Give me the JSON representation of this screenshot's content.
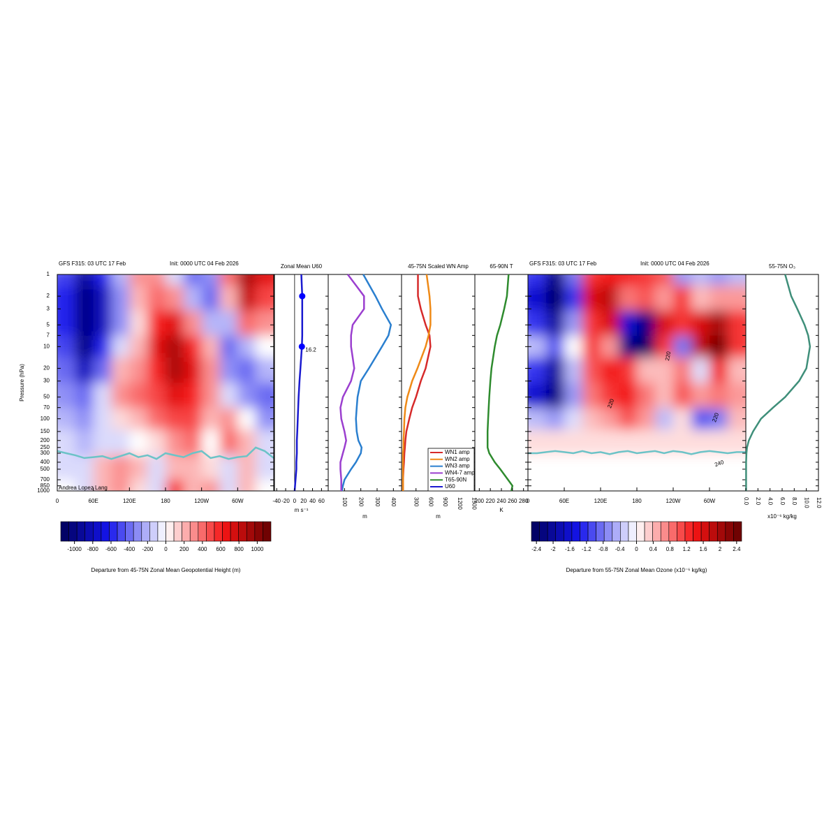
{
  "chart_data": [
    {
      "type": "heatmap",
      "title": "GFS F315: 03 UTC 17 Feb",
      "subtitle": "Init: 0000 UTC 04 Feb 2026",
      "y_label": "Pressure (hPa)",
      "credit": "Andrea Lopez Lang",
      "x": [
        15,
        45,
        75,
        105,
        135,
        165,
        195,
        225,
        255,
        285,
        315,
        345
      ],
      "levels": [
        1,
        2,
        5,
        10,
        20,
        50,
        100,
        200,
        500,
        1000
      ],
      "values": [
        [
          -500,
          -900,
          -600,
          -200,
          300,
          300,
          -100,
          -400,
          -300,
          400,
          900,
          700
        ],
        [
          -600,
          -1000,
          -800,
          -300,
          200,
          400,
          300,
          -200,
          -400,
          200,
          800,
          500
        ],
        [
          -600,
          -1000,
          -800,
          -300,
          100,
          600,
          700,
          300,
          -200,
          -200,
          400,
          300
        ],
        [
          -500,
          -1000,
          -600,
          -100,
          200,
          700,
          900,
          600,
          200,
          -400,
          -200,
          0
        ],
        [
          -400,
          -800,
          -400,
          200,
          300,
          600,
          900,
          700,
          300,
          -300,
          -400,
          -200
        ],
        [
          -300,
          -400,
          -100,
          300,
          400,
          500,
          700,
          600,
          300,
          -100,
          -300,
          -400
        ],
        [
          -200,
          -300,
          -100,
          100,
          200,
          400,
          500,
          500,
          200,
          300,
          0,
          -300
        ],
        [
          -100,
          -200,
          -100,
          -100,
          0,
          100,
          300,
          400,
          0,
          400,
          200,
          -100
        ],
        [
          -100,
          -100,
          200,
          300,
          200,
          -100,
          200,
          200,
          100,
          -100,
          200,
          -100
        ],
        [
          0,
          -100,
          200,
          300,
          100,
          -100,
          600,
          200,
          300,
          -100,
          200,
          0
        ]
      ],
      "xlim": [
        0,
        360
      ],
      "ylim": [
        1,
        1000
      ],
      "log_y": true,
      "xticks": [
        0,
        {
          "value": 60,
          "label": "60E"
        },
        {
          "value": 120,
          "label": "120E"
        },
        180,
        {
          "value": 240,
          "label": "120W"
        },
        {
          "value": 300,
          "label": "60W"
        }
      ],
      "yticks": [
        1,
        2,
        3,
        5,
        7,
        10,
        20,
        30,
        50,
        70,
        100,
        150,
        200,
        250,
        300,
        400,
        500,
        700,
        850,
        1000
      ],
      "overlay": {
        "color": "#6cc3c7",
        "x": [
          0,
          15,
          30,
          45,
          60,
          75,
          90,
          105,
          120,
          135,
          150,
          165,
          180,
          195,
          210,
          225,
          240,
          255,
          270,
          285,
          300,
          315,
          330,
          345,
          360
        ],
        "values": [
          280,
          300,
          320,
          350,
          340,
          330,
          360,
          330,
          300,
          340,
          320,
          360,
          300,
          320,
          340,
          300,
          280,
          350,
          330,
          360,
          340,
          330,
          250,
          280,
          350
        ]
      },
      "colorbar": {
        "clim": [
          -1150,
          1150
        ],
        "ticks": [
          -1000,
          -800,
          -600,
          -400,
          -200,
          0,
          200,
          400,
          600,
          800,
          1000
        ],
        "label": "Departure from 45-75N Zonal Mean Geopotential Height (m)"
      }
    },
    {
      "type": "profile",
      "title": "Zonal Mean U60",
      "x_label": "m s⁻¹",
      "xlim": [
        -45,
        75
      ],
      "xticks": [
        -40,
        -20,
        0,
        20,
        40,
        60
      ],
      "zero_line": true,
      "y": [
        1,
        2,
        3,
        5,
        7,
        10,
        20,
        30,
        50,
        70,
        100,
        150,
        200,
        250,
        300,
        400,
        500,
        700,
        850,
        1000
      ],
      "series": [
        {
          "name": "U60",
          "color": "#1a1ad0",
          "values": [
            15,
            17,
            17,
            17,
            17,
            16.2,
            13,
            11,
            9,
            8,
            7,
            6,
            5,
            5,
            5,
            4,
            4,
            2,
            1,
            0
          ]
        }
      ],
      "points": {
        "y": [
          2,
          10
        ],
        "values": [
          17,
          16.2
        ],
        "value_labels": [
          null,
          "16.2"
        ],
        "color": "#0000ff"
      }
    },
    {
      "type": "profile",
      "xlim": [
        0,
        450
      ],
      "xticks": [
        100,
        200,
        300,
        400
      ],
      "rotate_ticks": true,
      "x_label": "m",
      "y": [
        1,
        2,
        3,
        5,
        7,
        10,
        20,
        30,
        50,
        70,
        100,
        150,
        200,
        250,
        300,
        400,
        500,
        700,
        850,
        1000
      ],
      "series": [
        {
          "name": "WN3 amp",
          "color": "#2a7fcf",
          "values": [
            215,
            290,
            330,
            385,
            370,
            330,
            250,
            200,
            180,
            175,
            170,
            175,
            185,
            205,
            200,
            170,
            140,
            100,
            90,
            85
          ]
        },
        {
          "name": "WN4-7 amp",
          "color": "#9b3fcf",
          "values": [
            120,
            220,
            220,
            150,
            140,
            140,
            160,
            140,
            90,
            75,
            80,
            100,
            110,
            100,
            90,
            75,
            75,
            80,
            80,
            80
          ]
        }
      ]
    },
    {
      "type": "profile",
      "title": "45-75N Scaled WN Amp",
      "xlim": [
        0,
        1520
      ],
      "xticks": [
        300,
        600,
        900,
        1200,
        1500
      ],
      "rotate_ticks": true,
      "x_label": "m",
      "y": [
        1,
        2,
        3,
        5,
        7,
        10,
        20,
        30,
        50,
        70,
        100,
        150,
        200,
        250,
        300,
        400,
        500,
        700,
        850,
        1000
      ],
      "series": [
        {
          "name": "WN1 amp",
          "color": "#d62a2a",
          "values": [
            340,
            340,
            400,
            500,
            580,
            600,
            500,
            400,
            300,
            220,
            160,
            100,
            80,
            70,
            60,
            50,
            40,
            30,
            30,
            30
          ]
        },
        {
          "name": "WN2 amp",
          "color": "#ef8a17",
          "values": [
            520,
            580,
            600,
            600,
            560,
            500,
            330,
            220,
            120,
            80,
            60,
            50,
            40,
            40,
            30,
            30,
            30,
            30,
            30,
            30
          ]
        }
      ],
      "legend": "lower right"
    },
    {
      "type": "profile",
      "title": "65-90N T",
      "xlim": [
        192,
        288
      ],
      "xticks": [
        200,
        220,
        240,
        260,
        280
      ],
      "x_label": "K",
      "y": [
        1,
        2,
        3,
        5,
        7,
        10,
        20,
        30,
        50,
        70,
        100,
        150,
        200,
        250,
        300,
        400,
        500,
        700,
        850,
        1000
      ],
      "series": [
        {
          "name": "T65-90N",
          "color": "#2e8b2e",
          "values": [
            253,
            250,
            245,
            238,
            232,
            228,
            222,
            220,
            218,
            217,
            216,
            215,
            215,
            215,
            218,
            228,
            238,
            252,
            260,
            258
          ]
        }
      ]
    },
    {
      "type": "heatmap",
      "title": "GFS F315: 03 UTC 17 Feb",
      "subtitle": "Init: 0000 UTC 04 Feb 2026",
      "x": [
        15,
        45,
        75,
        105,
        135,
        165,
        195,
        225,
        255,
        285,
        315,
        345
      ],
      "levels": [
        1,
        2,
        5,
        10,
        20,
        50,
        100,
        200,
        500,
        1000
      ],
      "values": [
        [
          -1.2,
          -2.2,
          -0.8,
          1.2,
          1.4,
          1.4,
          1.2,
          1.0,
          -0.6,
          -0.4,
          -0.6,
          -0.4
        ],
        [
          -1.6,
          -2.4,
          -1.2,
          1.6,
          1.8,
          0.8,
          1.0,
          0.6,
          1.2,
          0.4,
          0.6,
          0.6
        ],
        [
          -1.2,
          -2.0,
          -0.6,
          1.2,
          1.6,
          -1.6,
          -2.2,
          1.6,
          1.2,
          1.6,
          2.0,
          1.2
        ],
        [
          -0.4,
          -1.0,
          0,
          1.2,
          0.6,
          -2.2,
          -2.4,
          1.2,
          -0.8,
          1.8,
          2.4,
          1.2
        ],
        [
          -1.2,
          -2.0,
          -0.4,
          1.0,
          1.4,
          1.2,
          0.4,
          0.4,
          0.8,
          -0.2,
          1.4,
          0.4
        ],
        [
          -1.6,
          -2.2,
          -0.6,
          0.8,
          1.2,
          1.4,
          0.8,
          0.4,
          1.0,
          0.6,
          0.8,
          0.6
        ],
        [
          -0.4,
          -0.6,
          -0.2,
          0.4,
          0.6,
          1.0,
          0.6,
          -0.4,
          0.2,
          -1.0,
          -0.8,
          0.4
        ],
        [
          0.2,
          0.2,
          0.2,
          0.2,
          0.2,
          0.2,
          0.2,
          0.2,
          0.2,
          0.2,
          0.2,
          0.2
        ],
        [
          0,
          0,
          0,
          0,
          0,
          0,
          0,
          0,
          0,
          0,
          0,
          0
        ],
        [
          0,
          0,
          0,
          0,
          0,
          0,
          0,
          0,
          0,
          0,
          0,
          0
        ]
      ],
      "xlim": [
        0,
        360
      ],
      "ylim": [
        1,
        1000
      ],
      "log_y": true,
      "xticks": [
        0,
        {
          "value": 60,
          "label": "60E"
        },
        {
          "value": 120,
          "label": "120E"
        },
        180,
        {
          "value": 240,
          "label": "120W"
        },
        {
          "value": 300,
          "label": "60W"
        }
      ],
      "contour_labels": [
        "220",
        "220",
        "220",
        "240"
      ],
      "overlay": {
        "color": "#6cc3c7",
        "x": [
          0,
          15,
          30,
          45,
          60,
          75,
          90,
          105,
          120,
          135,
          150,
          165,
          180,
          195,
          210,
          225,
          240,
          255,
          270,
          285,
          300,
          315,
          330,
          345,
          360
        ],
        "values": [
          300,
          300,
          290,
          280,
          290,
          300,
          280,
          300,
          290,
          310,
          290,
          280,
          300,
          290,
          280,
          300,
          280,
          290,
          310,
          290,
          280,
          290,
          300,
          290,
          290
        ]
      },
      "colorbar": {
        "clim": [
          -2.52,
          2.52
        ],
        "ticks": [
          -2.4,
          -2,
          -1.6,
          -1.2,
          -0.8,
          -0.4,
          0,
          0.4,
          0.8,
          1.2,
          1.6,
          2,
          2.4
        ],
        "label": "Departure from 55-75N Zonal Mean Ozone (x10⁻⁶ kg/kg)"
      }
    },
    {
      "type": "profile",
      "title": "55-75N O₃",
      "xlim": [
        0,
        12
      ],
      "rotate_ticks": true,
      "x_label": "x10⁻⁶ kg/kg",
      "xticks": [
        {
          "value": 0,
          "label": "0.0"
        },
        {
          "value": 2,
          "label": "2.0"
        },
        {
          "value": 4,
          "label": "4.0"
        },
        {
          "value": 6,
          "label": "6.0"
        },
        {
          "value": 8,
          "label": "8.0"
        },
        {
          "value": 10,
          "label": "10.0"
        },
        {
          "value": 12,
          "label": "12.0"
        }
      ],
      "y": [
        1,
        2,
        3,
        5,
        7,
        10,
        20,
        30,
        50,
        70,
        100,
        150,
        200,
        250,
        300,
        400,
        500,
        700,
        850,
        1000
      ],
      "series": [
        {
          "name": null,
          "color": "#3f8f7a",
          "values": [
            6.5,
            7.5,
            8.5,
            9.7,
            10.3,
            10.6,
            10.0,
            8.8,
            6.5,
            4.5,
            2.5,
            1.2,
            0.5,
            0.2,
            0.1,
            0.05,
            0.05,
            0.05,
            0.05,
            0.05
          ]
        }
      ]
    }
  ]
}
